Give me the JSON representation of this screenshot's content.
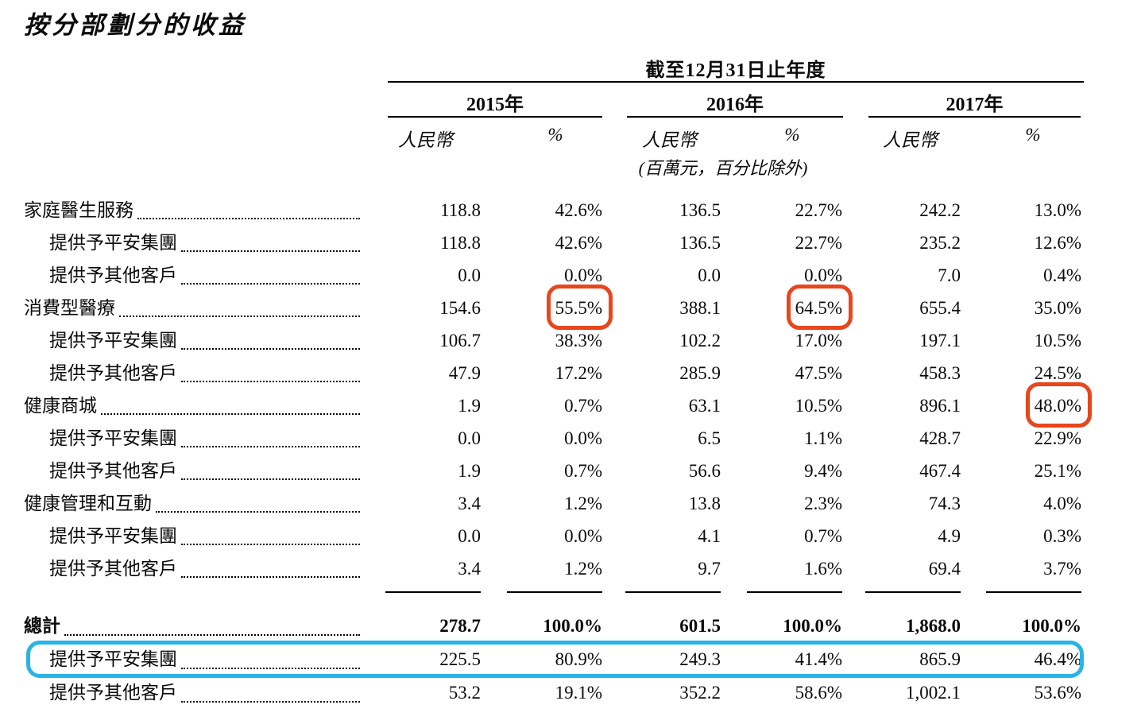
{
  "title": "按分部劃分的收益",
  "table": {
    "span_header": "截至12月31日止年度",
    "years": [
      "2015年",
      "2016年",
      "2017年"
    ],
    "currency_header": "人民幣",
    "percent_header": "%",
    "unit_note": "(百萬元，百分比除外)",
    "body_rows": [
      {
        "label": "家庭醫生服務",
        "indent": 0,
        "values": [
          "118.8",
          "42.6%",
          "136.5",
          "22.7%",
          "242.2",
          "13.0%"
        ],
        "rings": []
      },
      {
        "label": "提供予平安集團",
        "indent": 1,
        "values": [
          "118.8",
          "42.6%",
          "136.5",
          "22.7%",
          "235.2",
          "12.6%"
        ],
        "rings": []
      },
      {
        "label": "提供予其他客戶",
        "indent": 1,
        "values": [
          "0.0",
          "0.0%",
          "0.0",
          "0.0%",
          "7.0",
          "0.4%"
        ],
        "rings": []
      },
      {
        "label": "消費型醫療",
        "indent": 0,
        "values": [
          "154.6",
          "55.5%",
          "388.1",
          "64.5%",
          "655.4",
          "35.0%"
        ],
        "rings": [
          1,
          3
        ]
      },
      {
        "label": "提供予平安集團",
        "indent": 1,
        "values": [
          "106.7",
          "38.3%",
          "102.2",
          "17.0%",
          "197.1",
          "10.5%"
        ],
        "rings": []
      },
      {
        "label": "提供予其他客戶",
        "indent": 1,
        "values": [
          "47.9",
          "17.2%",
          "285.9",
          "47.5%",
          "458.3",
          "24.5%"
        ],
        "rings": []
      },
      {
        "label": "健康商城",
        "indent": 0,
        "values": [
          "1.9",
          "0.7%",
          "63.1",
          "10.5%",
          "896.1",
          "48.0%"
        ],
        "rings": [
          5
        ]
      },
      {
        "label": "提供予平安集團",
        "indent": 1,
        "values": [
          "0.0",
          "0.0%",
          "6.5",
          "1.1%",
          "428.7",
          "22.9%"
        ],
        "rings": []
      },
      {
        "label": "提供予其他客戶",
        "indent": 1,
        "values": [
          "1.9",
          "0.7%",
          "56.6",
          "9.4%",
          "467.4",
          "25.1%"
        ],
        "rings": []
      },
      {
        "label": "健康管理和互動",
        "indent": 0,
        "values": [
          "3.4",
          "1.2%",
          "13.8",
          "2.3%",
          "74.3",
          "4.0%"
        ],
        "rings": []
      },
      {
        "label": "提供予平安集團",
        "indent": 1,
        "values": [
          "0.0",
          "0.0%",
          "4.1",
          "0.7%",
          "4.9",
          "0.3%"
        ],
        "rings": []
      },
      {
        "label": "提供予其他客戶",
        "indent": 1,
        "values": [
          "3.4",
          "1.2%",
          "9.7",
          "1.6%",
          "69.4",
          "3.7%"
        ],
        "rings": []
      }
    ],
    "total_rows": [
      {
        "label": "總計",
        "indent": 0,
        "bold": true,
        "highlight": false,
        "values": [
          "278.7",
          "100.0%",
          "601.5",
          "100.0%",
          "1,868.0",
          "100.0%"
        ],
        "rings": []
      },
      {
        "label": "提供予平安集團",
        "indent": 1,
        "bold": false,
        "highlight": true,
        "values": [
          "225.5",
          "80.9%",
          "249.3",
          "41.4%",
          "865.9",
          "46.4%"
        ],
        "rings": []
      },
      {
        "label": "提供予其他客戶",
        "indent": 1,
        "bold": false,
        "highlight": false,
        "values": [
          "53.2",
          "19.1%",
          "352.2",
          "58.6%",
          "1,002.1",
          "53.6%"
        ],
        "rings": []
      }
    ]
  },
  "colors": {
    "ring_red": "#e8461c",
    "highlight_blue": "#29b4e8",
    "text": "#0b0b0b",
    "rule": "#000000"
  }
}
